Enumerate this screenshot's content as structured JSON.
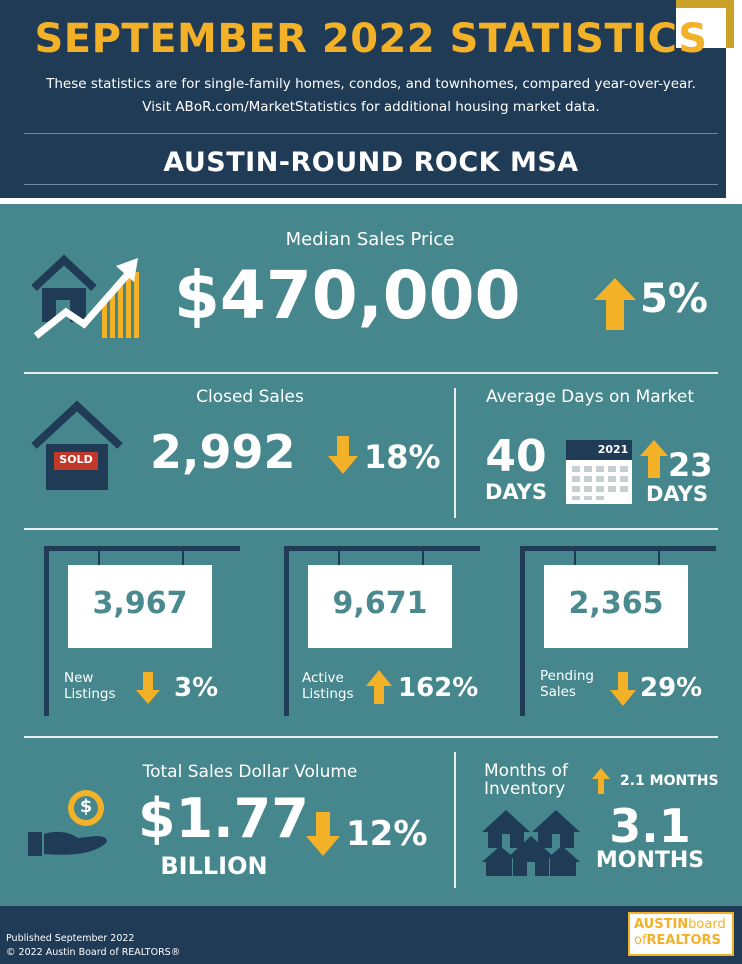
{
  "header": {
    "title": "SEPTEMBER 2022 STATISTICS",
    "line1": "These statistics are for single-family homes, condos, and townhomes, compared year-over-year.",
    "line2": "Visit ABoR.com/MarketStatistics for additional housing market data.",
    "region": "AUSTIN-ROUND ROCK MSA"
  },
  "median": {
    "label": "Median Sales Price",
    "value": "$470,000",
    "change": "5%",
    "direction": "up"
  },
  "closed": {
    "label": "Closed Sales",
    "value": "2,992",
    "change": "18%",
    "direction": "down",
    "sign_text": "SOLD"
  },
  "days": {
    "label": "Average Days on Market",
    "value": "40",
    "unit": "DAYS",
    "calendar_year": "2021",
    "change": "23",
    "change_unit": "DAYS",
    "direction": "up"
  },
  "listings": [
    {
      "value": "3,967",
      "label_line1": "New",
      "label_line2": "Listings",
      "change": "3%",
      "direction": "down"
    },
    {
      "value": "9,671",
      "label_line1": "Active",
      "label_line2": "Listings",
      "change": "162%",
      "direction": "up"
    },
    {
      "value": "2,365",
      "label_line1": "Pending",
      "label_line2": "Sales",
      "change": "29%",
      "direction": "down"
    }
  ],
  "volume": {
    "label": "Total Sales Dollar Volume",
    "value": "$1.77",
    "unit": "BILLION",
    "change": "12%",
    "direction": "down",
    "coin_symbol": "$"
  },
  "inventory": {
    "label_line1": "Months of",
    "label_line2": "Inventory",
    "change": "2.1 MONTHS",
    "direction": "up",
    "value": "3.1",
    "unit": "MONTHS"
  },
  "footer": {
    "published": "Published September 2022",
    "copyright": "© 2022 Austin Board of REALTORS®",
    "logo_line1a": "AUSTIN",
    "logo_line1b": "board",
    "logo_line2a": "of",
    "logo_line2b": "REALTORS"
  },
  "colors": {
    "navy": "#203b56",
    "teal": "#46878d",
    "gold": "#f3b128",
    "white": "#ffffff"
  }
}
